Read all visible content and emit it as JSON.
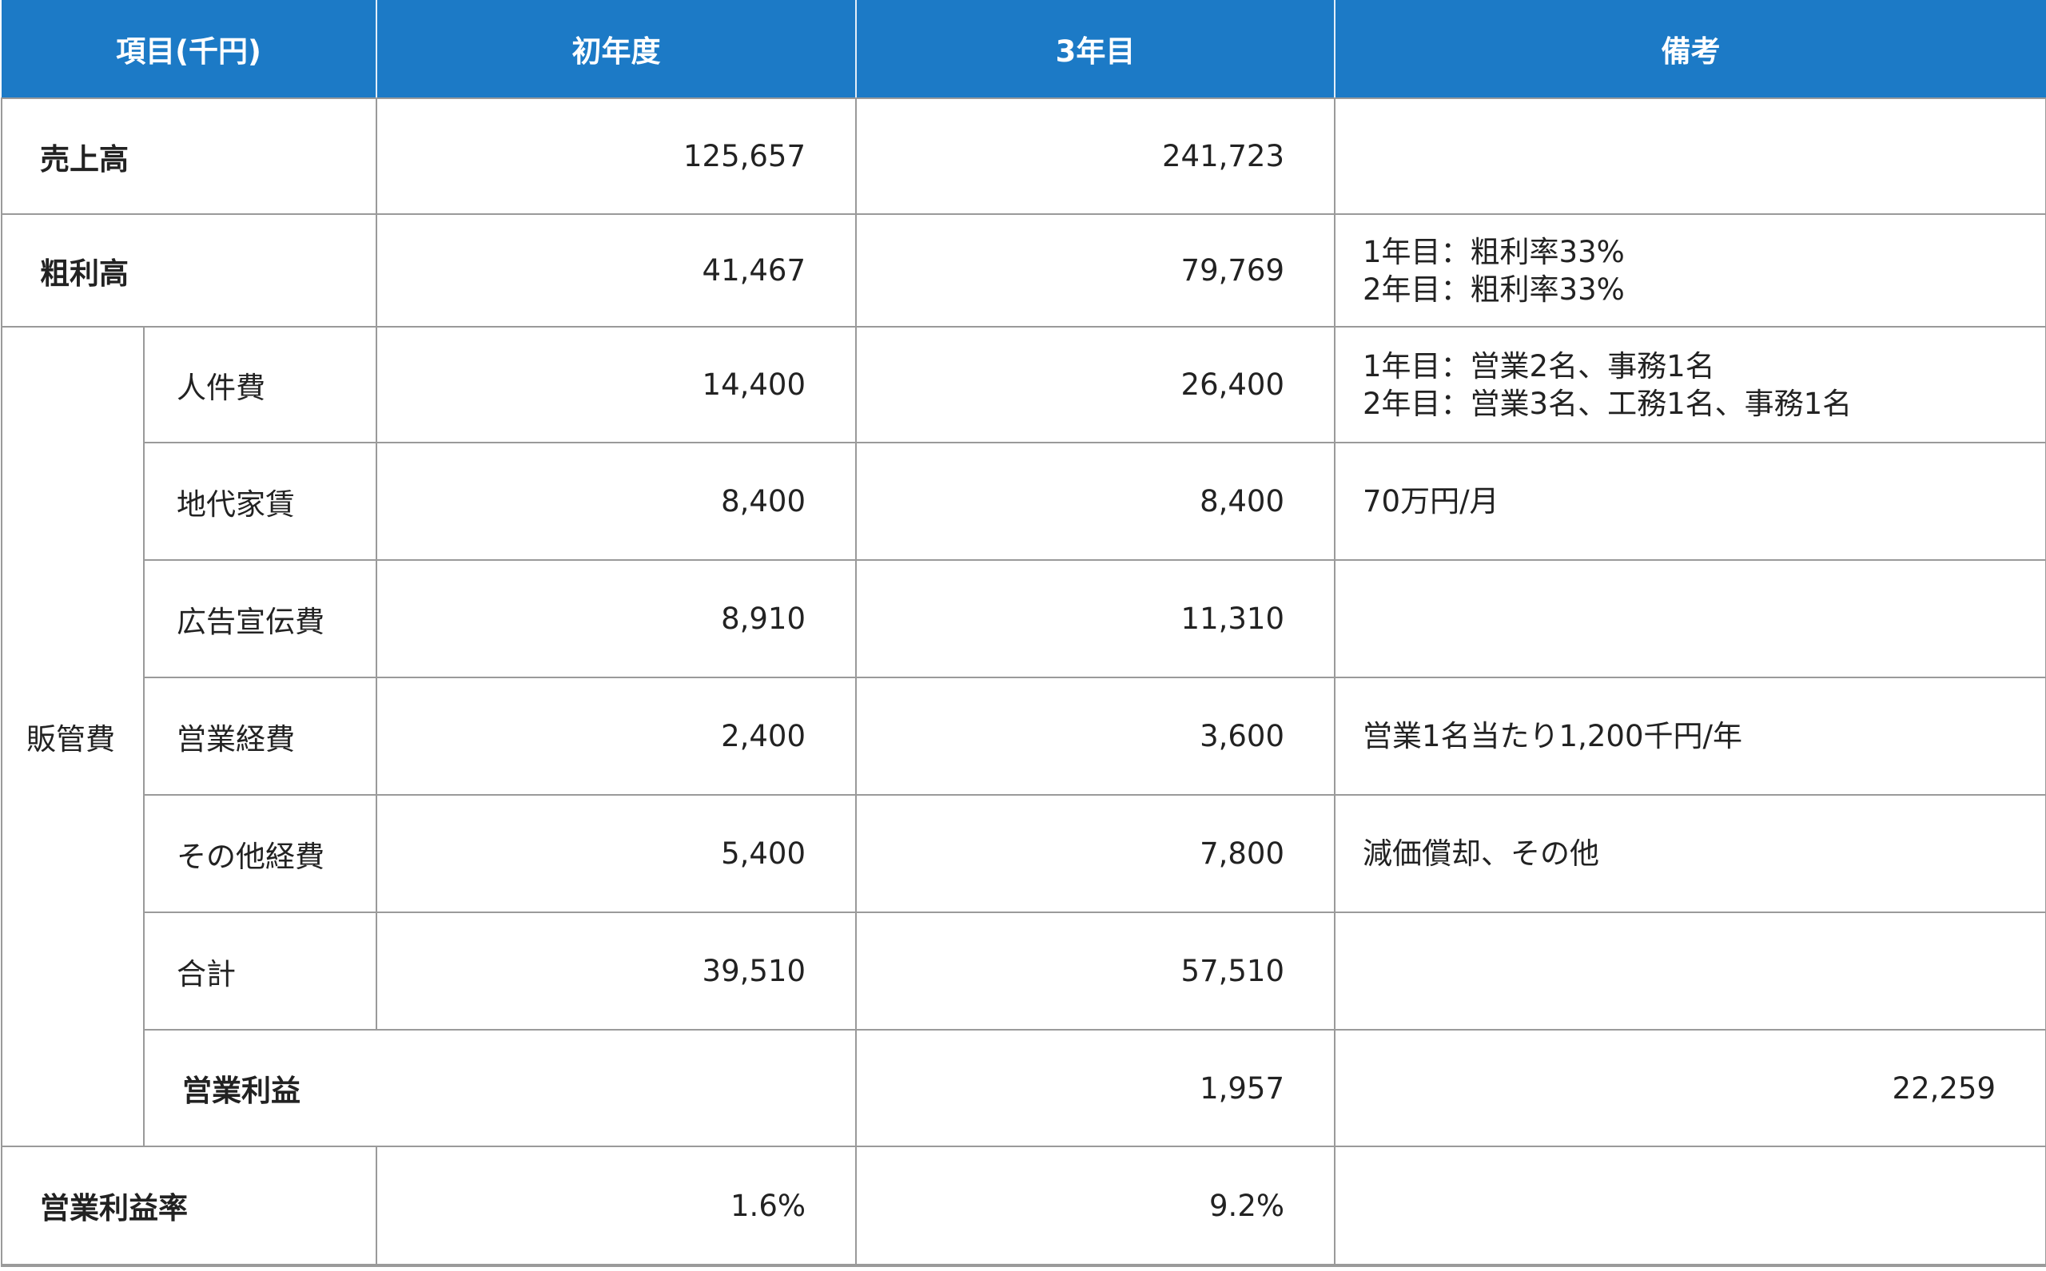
{
  "header": {
    "item": "項目(千円)",
    "year1": "初年度",
    "year3": "3年目",
    "notes": "備考"
  },
  "rows": {
    "sales": {
      "label": "売上高",
      "year1": "125,657",
      "year3": "241,723",
      "note1": "",
      "note2": ""
    },
    "gross": {
      "label": "粗利高",
      "year1": "41,467",
      "year3": "79,769",
      "note1": "1年目：粗利率33%",
      "note2": "2年目：粗利率33%"
    },
    "sga_group": "販管費",
    "personnel": {
      "label": "人件費",
      "year1": "14,400",
      "year3": "26,400",
      "note1": "1年目：営業2名、事務1名",
      "note2": "2年目：営業3名、工務1名、事務1名"
    },
    "rent": {
      "label": "地代家賃",
      "year1": "8,400",
      "year3": "8,400",
      "note1": "70万円/月"
    },
    "advertising": {
      "label": "広告宣伝費",
      "year1": "8,910",
      "year3": "11,310",
      "note1": ""
    },
    "sales_expense": {
      "label": "営業経費",
      "year1": "2,400",
      "year3": "3,600",
      "note1": "営業1名当たり1,200千円/年"
    },
    "other_expense": {
      "label": "その他経費",
      "year1": "5,400",
      "year3": "7,800",
      "note1": "減価償却、その他"
    },
    "sga_total": {
      "label": "合計",
      "year1": "39,510",
      "year3": "57,510",
      "note1": ""
    },
    "op_profit": {
      "label": "営業利益",
      "year1": "1,957",
      "year3": "22,259",
      "note1": ""
    },
    "op_margin": {
      "label": "営業利益率",
      "year1": "1.6%",
      "year3": "9.2%",
      "note1": ""
    }
  },
  "colors": {
    "header_bg": "#1c7ac6",
    "header_text": "#ffffff",
    "border": "#9a9a9a"
  }
}
